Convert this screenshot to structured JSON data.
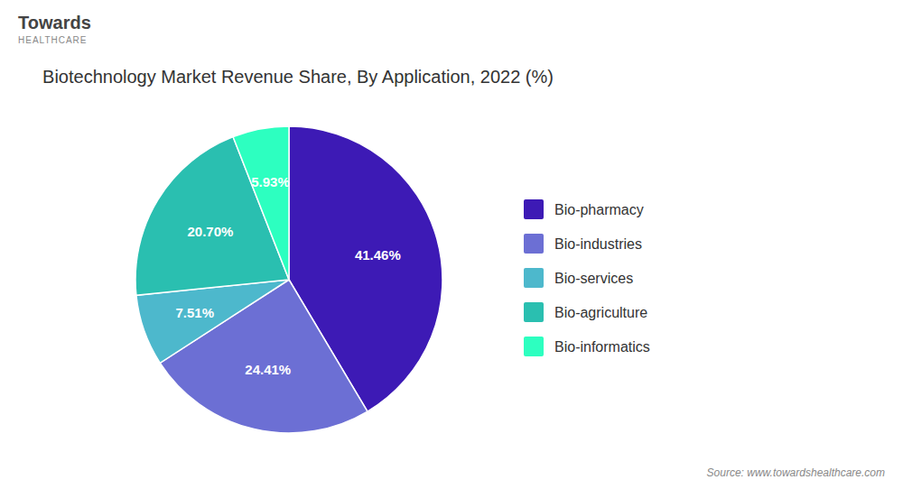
{
  "chart_data": {
    "type": "pie",
    "title": "Biotechnology Market Revenue Share, By Application, 2022 (%)",
    "categories": [
      "Bio-pharmacy",
      "Bio-industries",
      "Bio-services",
      "Bio-agriculture",
      "Bio-informatics"
    ],
    "values": [
      41.46,
      24.41,
      7.51,
      20.7,
      5.93
    ],
    "value_labels": [
      "41.46%",
      "24.41%",
      "7.51%",
      "20.70%",
      "5.93%"
    ],
    "colors": [
      "#3d1ab5",
      "#6c6fd4",
      "#4db8cc",
      "#2abfb0",
      "#2dffc0"
    ],
    "data_labels": true,
    "legend": "right",
    "annotations": [
      "Towards",
      "HEALTHCARE",
      "Source: www.towardshealthcare.com"
    ]
  }
}
